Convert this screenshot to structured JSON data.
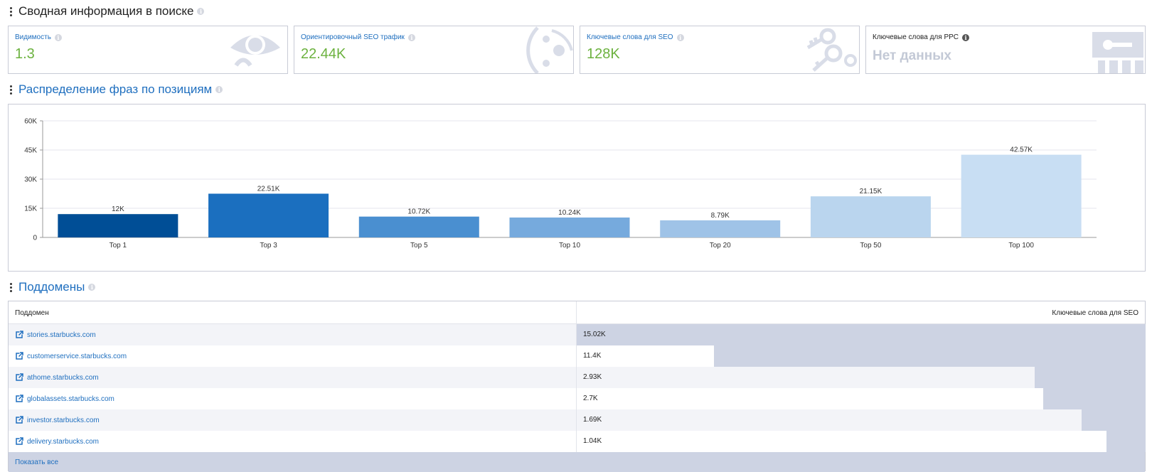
{
  "summary": {
    "title": "Сводная информация в поиске",
    "cards": [
      {
        "label": "Видимость",
        "value": "1.3",
        "icon": "eye-icon"
      },
      {
        "label": "Ориентировочный SEO трафик",
        "value": "22.44K",
        "icon": "traffic-icon"
      },
      {
        "label": "Ключевые слова для SEO",
        "value": "128K",
        "icon": "keys-icon"
      },
      {
        "label": "Ключевые слова для PPC",
        "value": "Нет данных",
        "icon": "ppc-key-icon"
      }
    ],
    "colors": {
      "value": "#6cb23f",
      "label": "#1f6fbf",
      "nodata": "#c3c9d6"
    }
  },
  "positions": {
    "title": "Распределение фраз по позициям"
  },
  "chart_data": {
    "type": "bar",
    "categories": [
      "Top 1",
      "Top 3",
      "Top 5",
      "Top 10",
      "Top 20",
      "Top 50",
      "Top 100"
    ],
    "values": [
      12000,
      22510,
      10720,
      10240,
      8790,
      21150,
      42570
    ],
    "labels": [
      "12K",
      "22.51K",
      "10.72K",
      "10.24K",
      "8.79K",
      "21.15K",
      "42.57K"
    ],
    "colors": [
      "#004e96",
      "#1b6fbf",
      "#4a8fd0",
      "#76aadd",
      "#9fc3e7",
      "#bad5ee",
      "#c8def3"
    ],
    "yticks": [
      "0",
      "15K",
      "30K",
      "45K",
      "60K"
    ],
    "ytick_values": [
      0,
      15000,
      30000,
      45000,
      60000
    ],
    "ylim": [
      0,
      60000
    ],
    "grid": true
  },
  "subdomains": {
    "title": "Поддомены",
    "col_subdomain": "Поддомен",
    "col_keywords": "Ключевые слова для SEO",
    "max_value": 15020,
    "rows": [
      {
        "name": "stories.starbucks.com",
        "value_text": "15.02K",
        "value": 15020
      },
      {
        "name": "customerservice.starbucks.com",
        "value_text": "11.4K",
        "value": 11400
      },
      {
        "name": "athome.starbucks.com",
        "value_text": "2.93K",
        "value": 2930
      },
      {
        "name": "globalassets.starbucks.com",
        "value_text": "2.7K",
        "value": 2700
      },
      {
        "name": "investor.starbucks.com",
        "value_text": "1.69K",
        "value": 1690
      },
      {
        "name": "delivery.starbucks.com",
        "value_text": "1.04K",
        "value": 1040
      }
    ],
    "show_all": "Показать все"
  }
}
